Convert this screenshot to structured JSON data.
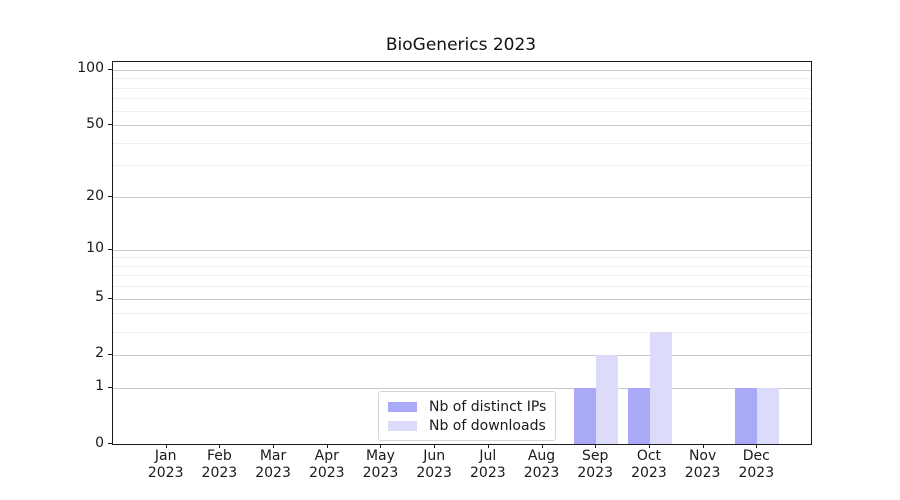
{
  "chart_data": {
    "type": "bar",
    "title": "BioGenerics 2023",
    "categories": [
      "Jan 2023",
      "Feb 2023",
      "Mar 2023",
      "Apr 2023",
      "May 2023",
      "Jun 2023",
      "Jul 2023",
      "Aug 2023",
      "Sep 2023",
      "Oct 2023",
      "Nov 2023",
      "Dec 2023"
    ],
    "series": [
      {
        "name": "Nb of distinct IPs",
        "color": "#a9a9f7",
        "values": [
          0,
          0,
          0,
          0,
          0,
          0,
          0,
          0,
          1,
          1,
          0,
          1
        ]
      },
      {
        "name": "Nb of downloads",
        "color": "#dcdcfa",
        "values": [
          0,
          0,
          0,
          0,
          0,
          0,
          0,
          0,
          2,
          3,
          0,
          1
        ]
      }
    ],
    "xlabel": "",
    "ylabel": "",
    "yscale": "log1p",
    "ylim": [
      0,
      110
    ],
    "yticks_major": [
      0,
      1,
      2,
      5,
      10,
      20,
      50,
      100
    ],
    "yticks_minor": [
      3,
      4,
      6,
      7,
      8,
      9,
      30,
      40,
      60,
      70,
      80,
      90
    ],
    "grid": "horizontal",
    "legend_position": "lower center"
  },
  "colors": {
    "grid_major": "#c9c9c9",
    "grid_minor": "#efefef",
    "spine": "#1a1a1a",
    "background": "#ffffff"
  }
}
